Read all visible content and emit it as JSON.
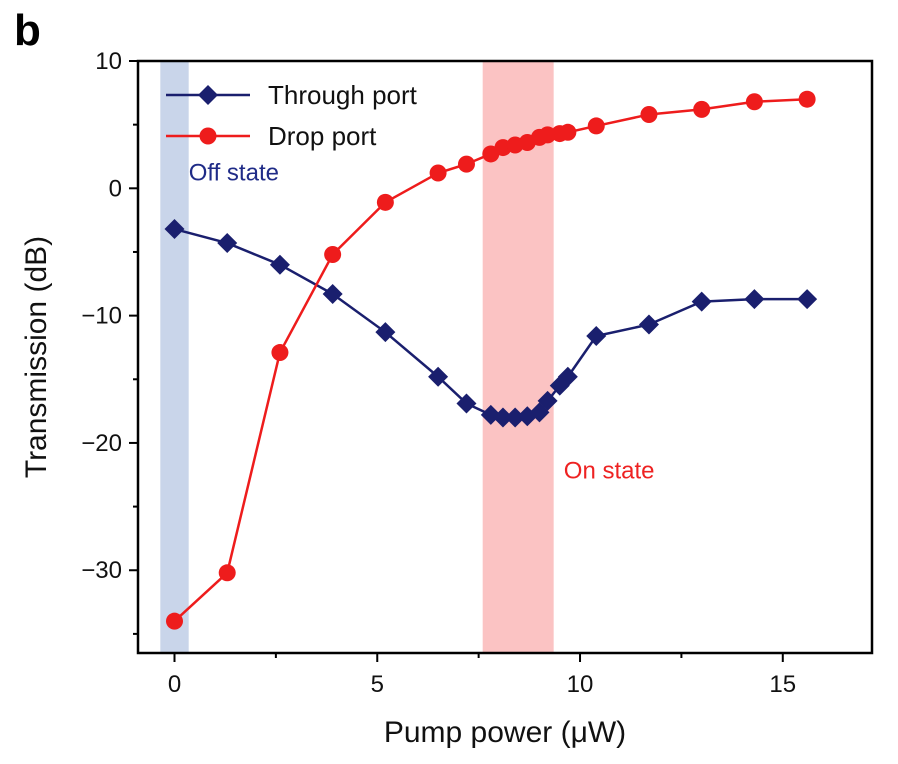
{
  "panel_label": "b",
  "chart_data": {
    "type": "line",
    "title": "",
    "xlabel": "Pump power (μW)",
    "ylabel": "Transmission (dB)",
    "xlim": [
      -0.9,
      17.2
    ],
    "ylim": [
      -36.5,
      10
    ],
    "xticks": [
      0,
      5,
      10,
      15
    ],
    "yticks": [
      10,
      0,
      -10,
      -20,
      -30
    ],
    "xtick_labels": [
      "0",
      "5",
      "10",
      "15"
    ],
    "ytick_labels": [
      "10",
      "0",
      "−10",
      "−20",
      "−30"
    ],
    "grid": false,
    "legend": "top-left",
    "shaded_regions": [
      {
        "x": [
          -0.35,
          0.35
        ],
        "color": "#c9d5ea",
        "label": "Off state",
        "label_color": "#1f2b87",
        "label_at": [
          0.35,
          0.6
        ]
      },
      {
        "x": [
          7.6,
          9.35
        ],
        "color": "#fbc3c3",
        "label": "On state",
        "label_color": "#ee2222",
        "label_at": [
          9.6,
          -22.8
        ]
      }
    ],
    "series": [
      {
        "name": "Through port",
        "color": "#1a1f6e",
        "marker": "diamond",
        "x": [
          0,
          1.3,
          2.6,
          3.9,
          5.2,
          6.5,
          7.2,
          7.8,
          8.1,
          8.4,
          8.7,
          9.0,
          9.2,
          9.5,
          9.7,
          10.4,
          11.7,
          13.0,
          14.3,
          15.6
        ],
        "y": [
          -3.2,
          -4.3,
          -6.0,
          -8.3,
          -11.3,
          -14.8,
          -16.9,
          -17.8,
          -18.0,
          -18.0,
          -17.9,
          -17.6,
          -16.7,
          -15.5,
          -14.8,
          -11.6,
          -10.7,
          -8.9,
          -8.7,
          -8.7
        ]
      },
      {
        "name": "Drop port",
        "color": "#ee1c1c",
        "marker": "circle",
        "x": [
          0,
          1.3,
          2.6,
          3.9,
          5.2,
          6.5,
          7.2,
          7.8,
          8.1,
          8.4,
          8.7,
          9.0,
          9.2,
          9.5,
          9.7,
          10.4,
          11.7,
          13.0,
          14.3,
          15.6
        ],
        "y": [
          -34.0,
          -30.2,
          -12.9,
          -5.2,
          -1.1,
          1.2,
          1.9,
          2.7,
          3.2,
          3.4,
          3.6,
          4.0,
          4.2,
          4.3,
          4.4,
          4.9,
          5.8,
          6.2,
          6.8,
          7.0
        ]
      }
    ]
  }
}
